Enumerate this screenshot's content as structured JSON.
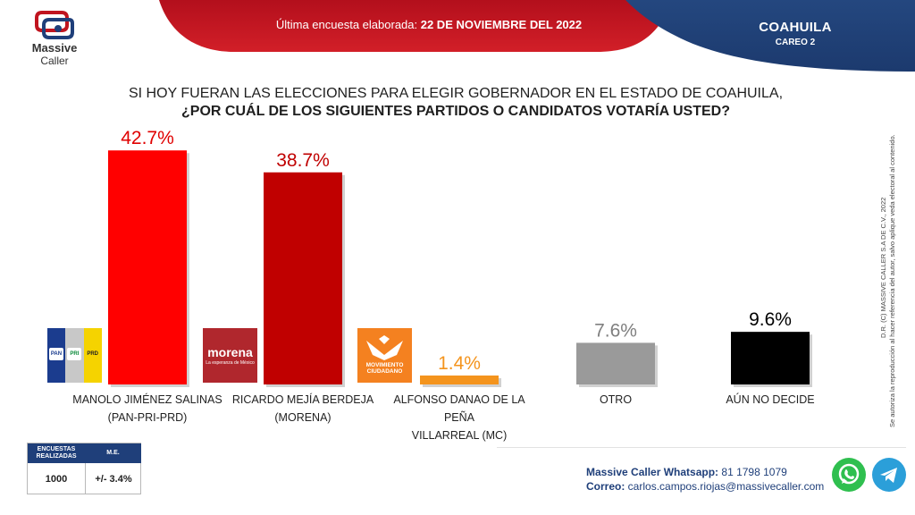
{
  "header": {
    "prefix": "Última encuesta elaborada: ",
    "date": "22 DE NOVIEMBRE DEL 2022",
    "state": "COAHUILA",
    "careo": "CAREO 2"
  },
  "logo": {
    "line1": "Massive",
    "line2": "Caller"
  },
  "question": {
    "line1": "SI HOY FUERAN LAS ELECCIONES PARA ELEGIR GOBERNADOR EN EL ESTADO DE COAHUILA,",
    "line2": "¿POR CUÁL DE LOS SIGUIENTES PARTIDOS O CANDIDATOS  VOTARÍA USTED?"
  },
  "chart_data": {
    "type": "bar",
    "title": "¿POR CUÁL DE LOS SIGUIENTES PARTIDOS O CANDIDATOS VOTARÍA USTED?",
    "categories": [
      [
        "MANOLO JIMÉNEZ SALINAS",
        "(PAN-PRI-PRD)"
      ],
      [
        "RICARDO MEJÍA BERDEJA",
        "(MORENA)"
      ],
      [
        "ALFONSO DANAO DE LA PEÑA",
        "VILLARREAL (MC)"
      ],
      [
        "OTRO"
      ],
      [
        "AÚN NO DECIDE"
      ]
    ],
    "values": [
      42.7,
      38.7,
      1.4,
      7.6,
      9.6
    ],
    "value_labels": [
      "42.7%",
      "38.7%",
      "1.4%",
      "7.6%",
      "9.6%"
    ],
    "colors": [
      "#ff0000",
      "#c00000",
      "#f4941d",
      "#9a9a9a",
      "#000000"
    ],
    "label_colors": [
      "#e00000",
      "#c00000",
      "#f4941d",
      "#7f7f7f",
      "#000000"
    ],
    "xlabel": "",
    "ylabel": "",
    "ylim": [
      0,
      45
    ],
    "grid": false
  },
  "party_logos": {
    "pan": "PAN",
    "pri": "PRI",
    "prd": "PRD",
    "morena": "morena",
    "morena_tag": "La esperanza de México",
    "mc": "MOVIMIENTO CIUDADANO"
  },
  "side_notes": {
    "copyright": "D.R. (C) MASSIVE CALLER S.A DE C.V., 2022",
    "notice1": "Se autoriza la reproducción al hacer referencia del autor, salvo aplique veda electoral al contenido."
  },
  "footer": {
    "table": {
      "head1": "ENCUESTAS REALIZADAS",
      "head2": "M.E.",
      "val1": "1000",
      "val2": "+/- 3.4%"
    },
    "whatsapp_label": "Massive Caller Whatsapp:",
    "whatsapp_number": " 81 1798 1079",
    "email_label": "Correo:",
    "email": " carlos.campos.riojas@massivecaller.com"
  },
  "colors": {
    "header_red": "#c1121f",
    "header_blue": "#1f3f7a",
    "text_blue": "#1f3f7a"
  }
}
